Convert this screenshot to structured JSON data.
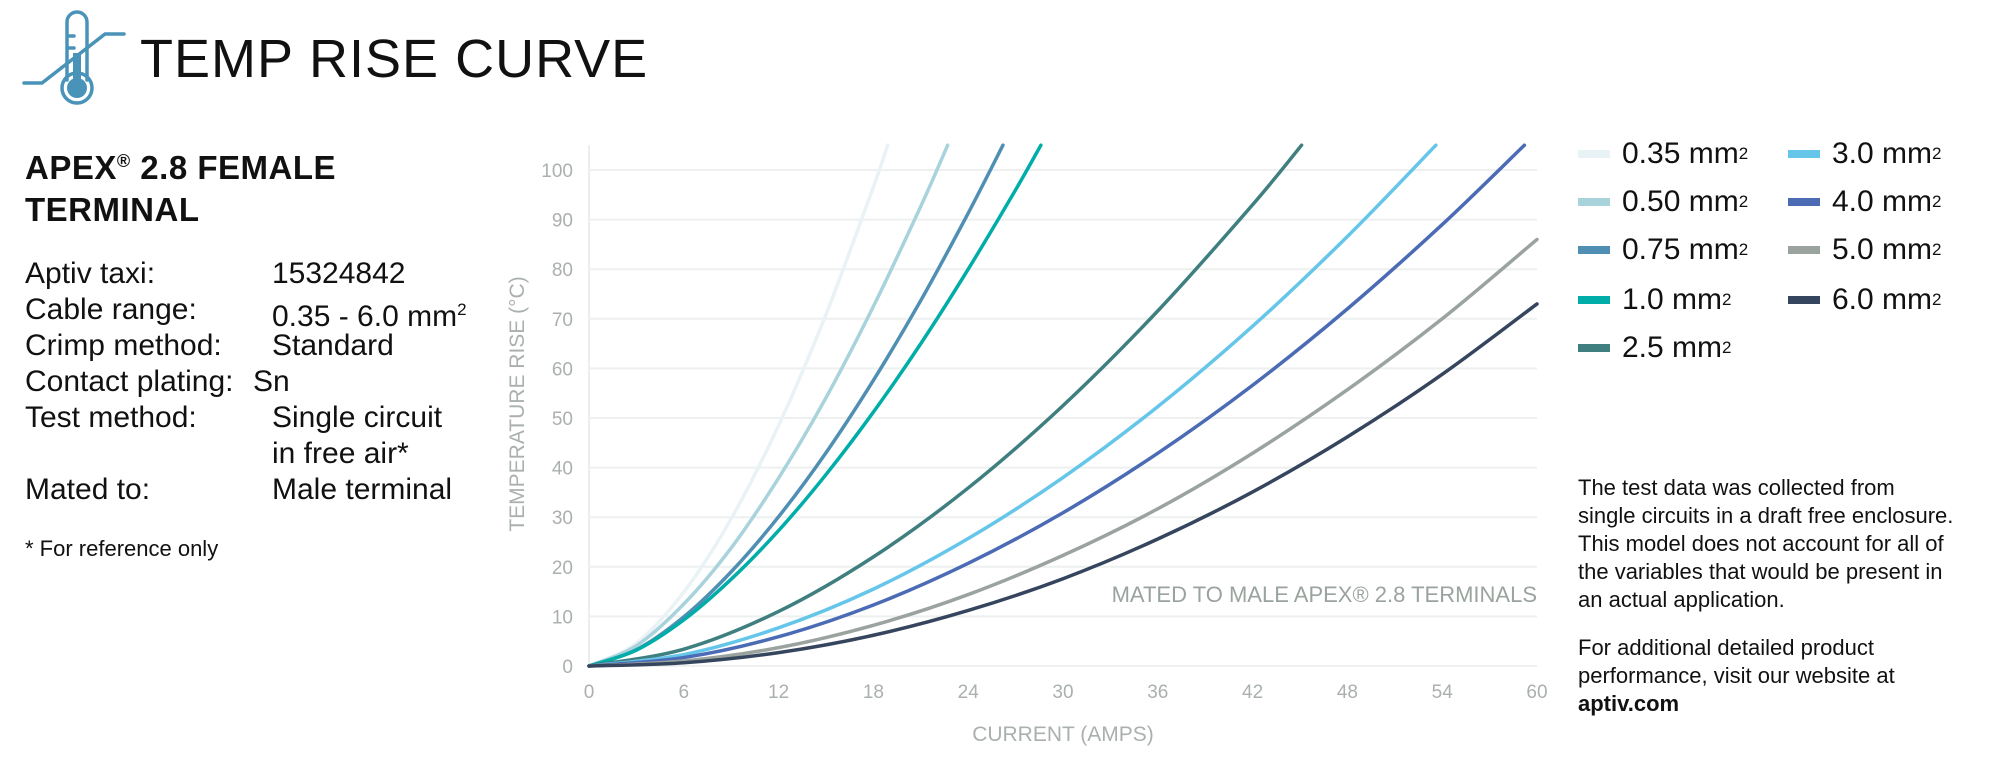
{
  "header": {
    "title": "TEMP RISE CURVE",
    "icon": "thermometer-icon",
    "icon_color": "#4a93b8"
  },
  "product": {
    "title_part1": "APEX",
    "reg": "®",
    "title_part2": " 2.8 FEMALE",
    "title_line2": "TERMINAL"
  },
  "specs": [
    {
      "label": "Aptiv taxi:",
      "value": "15324842"
    },
    {
      "label": "Cable range:",
      "value": "0.35 - 6.0 mm",
      "sup": "2"
    },
    {
      "label": "Crimp method:",
      "value": "Standard"
    },
    {
      "label": "Contact plating:",
      "value": "Sn"
    },
    {
      "label": "Test method:",
      "value": "Single circuit",
      "value2": "in free air*"
    },
    {
      "label": "Mated to:",
      "value": "Male terminal"
    }
  ],
  "footnote": "* For reference only",
  "notes": {
    "p1": "The test data was collected from single circuits in a draft free enclosure. This model does not account for all of the variables that would be present in an actual application.",
    "p2": "For additional detailed product performance, visit our website at",
    "link": "aptiv.com"
  },
  "chart_data": {
    "type": "line",
    "title": "TEMP RISE CURVE",
    "xlabel": "CURRENT (AMPS)",
    "ylabel": "TEMPERATURE RISE (°C)",
    "xlim": [
      0,
      60
    ],
    "ylim": [
      0,
      105
    ],
    "xticks": [
      "0",
      "6",
      "12",
      "18",
      "24",
      "30",
      "36",
      "42",
      "48",
      "54",
      "60"
    ],
    "yticks": [
      "0",
      "10",
      "20",
      "30",
      "40",
      "50",
      "60",
      "70",
      "80",
      "90",
      "100"
    ],
    "grid": "horizontal",
    "legend_position": "right",
    "annotation": "MATED TO MALE APEX® 2.8 TERMINALS",
    "unit_label": "mm",
    "unit_sup": "2",
    "series": [
      {
        "name": "0.35",
        "color": "#e9f2f5",
        "x": [
          0,
          3,
          6,
          9,
          12,
          15,
          18,
          18.9
        ],
        "y": [
          0,
          4.6,
          14.9,
          29.7,
          48.5,
          70.9,
          96.6,
          105
        ]
      },
      {
        "name": "0.50",
        "color": "#a9d3dc",
        "x": [
          0,
          3,
          6,
          9,
          12,
          15,
          18,
          21,
          22.7
        ],
        "y": [
          0,
          4.1,
          12.5,
          23.8,
          37.9,
          54.1,
          72.5,
          92.7,
          105
        ]
      },
      {
        "name": "0.75",
        "color": "#4f8fb4",
        "x": [
          0,
          3,
          6,
          9,
          12,
          15,
          18,
          21,
          24,
          26.2
        ],
        "y": [
          0,
          3.3,
          9.9,
          19.0,
          30.1,
          43.0,
          57.6,
          73.7,
          91.3,
          105
        ]
      },
      {
        "name": "1.0",
        "color": "#00ada8",
        "x": [
          0,
          3,
          6,
          9,
          12,
          15,
          18,
          21,
          24,
          27,
          28.6
        ],
        "y": [
          0,
          3.2,
          9.3,
          17.5,
          27.3,
          38.6,
          51.2,
          65.0,
          80.0,
          96.0,
          105
        ]
      },
      {
        "name": "2.5",
        "color": "#3f7f80",
        "x": [
          0,
          6,
          12,
          18,
          24,
          30,
          36,
          42,
          45.1
        ],
        "y": [
          0,
          3.4,
          11.0,
          22.0,
          35.9,
          52.5,
          71.6,
          93.0,
          105
        ]
      },
      {
        "name": "3.0",
        "color": "#66c6ea",
        "x": [
          0,
          6,
          12,
          18,
          24,
          30,
          36,
          42,
          48,
          53.6
        ],
        "y": [
          0,
          2.3,
          7.7,
          15.5,
          25.7,
          38.0,
          52.3,
          68.5,
          86.6,
          105
        ]
      },
      {
        "name": "4.0",
        "color": "#4b6bb5",
        "x": [
          0,
          6,
          12,
          18,
          24,
          30,
          36,
          42,
          48,
          54,
          59.2
        ],
        "y": [
          0,
          1.7,
          5.9,
          12.3,
          20.7,
          30.9,
          42.9,
          56.6,
          72.0,
          89.0,
          105
        ]
      },
      {
        "name": "5.0",
        "color": "#9ba39f",
        "x": [
          0,
          6,
          12,
          18,
          24,
          30,
          36,
          42,
          48,
          54,
          60
        ],
        "y": [
          0,
          1.0,
          3.7,
          8.2,
          14.4,
          22.3,
          31.7,
          42.9,
          55.7,
          70.0,
          86
        ]
      },
      {
        "name": "6.0",
        "color": "#36455e",
        "x": [
          0,
          6,
          12,
          18,
          24,
          30,
          36,
          42,
          48,
          54,
          60
        ],
        "y": [
          0,
          0.65,
          2.7,
          6.2,
          11.2,
          17.6,
          25.6,
          35.1,
          46.2,
          58.8,
          73
        ]
      }
    ]
  }
}
